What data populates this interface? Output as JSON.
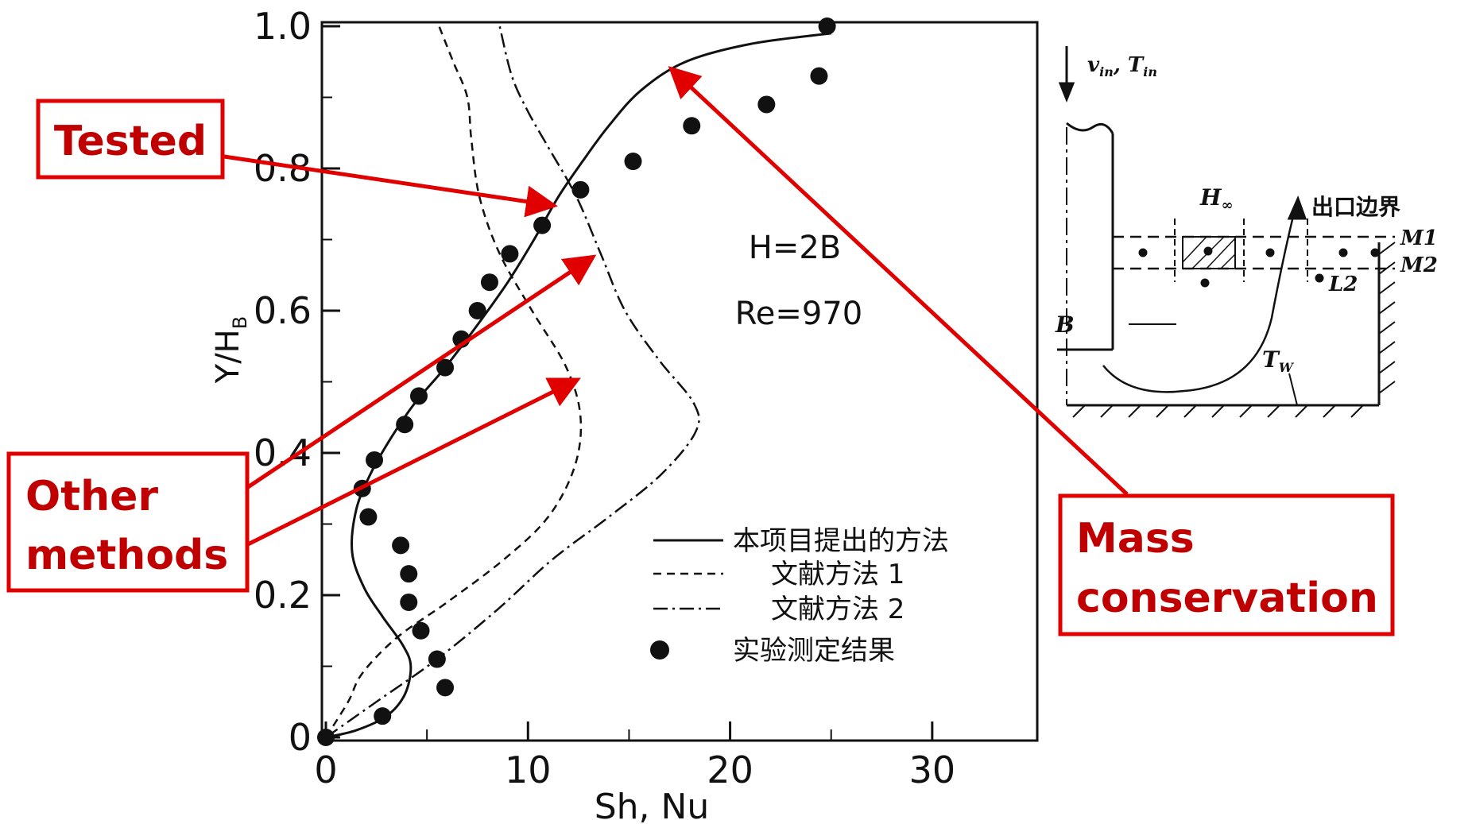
{
  "chart_data": {
    "type": "line",
    "xlabel": "Sh, Nu",
    "ylabel_main": "Y/H",
    "ylabel_sub": "B",
    "xlim": [
      0,
      35
    ],
    "ylim": [
      0,
      1.0
    ],
    "xticks": [
      "0",
      "10",
      "20",
      "30"
    ],
    "xtick_values": [
      0,
      10,
      20,
      30
    ],
    "yticks": [
      "0",
      "0.2",
      "0.4",
      "0.6",
      "0.8",
      "1.0"
    ],
    "ytick_values": [
      0,
      0.2,
      0.4,
      0.6,
      0.8,
      1.0
    ],
    "annotations": [
      "H=2B",
      "Re=970"
    ],
    "series": [
      {
        "name": "本项目提出的方法",
        "style": "solid",
        "points": [
          [
            0,
            0
          ],
          [
            1.5,
            0.01
          ],
          [
            3.0,
            0.03
          ],
          [
            3.9,
            0.06
          ],
          [
            4.2,
            0.1
          ],
          [
            3.8,
            0.13
          ],
          [
            2.8,
            0.17
          ],
          [
            1.9,
            0.21
          ],
          [
            1.3,
            0.26
          ],
          [
            1.5,
            0.32
          ],
          [
            2.2,
            0.37
          ],
          [
            3.2,
            0.42
          ],
          [
            4.4,
            0.47
          ],
          [
            5.9,
            0.52
          ],
          [
            7.5,
            0.58
          ],
          [
            9.0,
            0.64
          ],
          [
            10.3,
            0.7
          ],
          [
            11.5,
            0.76
          ],
          [
            12.7,
            0.81
          ],
          [
            14.0,
            0.86
          ],
          [
            15.6,
            0.91
          ],
          [
            17.8,
            0.95
          ],
          [
            21.0,
            0.975
          ],
          [
            25.0,
            0.99
          ]
        ]
      },
      {
        "name": "文献方法 1",
        "style": "dashed",
        "points": [
          [
            0,
            0
          ],
          [
            1.1,
            0.05
          ],
          [
            1.8,
            0.09
          ],
          [
            3.5,
            0.14
          ],
          [
            6.0,
            0.19
          ],
          [
            8.8,
            0.25
          ],
          [
            11.0,
            0.31
          ],
          [
            12.3,
            0.38
          ],
          [
            12.6,
            0.45
          ],
          [
            11.9,
            0.52
          ],
          [
            10.2,
            0.6
          ],
          [
            8.6,
            0.68
          ],
          [
            7.6,
            0.76
          ],
          [
            7.2,
            0.84
          ],
          [
            7.0,
            0.9
          ],
          [
            6.3,
            0.95
          ],
          [
            5.6,
            1.0
          ]
        ]
      },
      {
        "name": "文献方法 2",
        "style": "dashdot",
        "points": [
          [
            0,
            0
          ],
          [
            2.5,
            0.05
          ],
          [
            5.5,
            0.11
          ],
          [
            8.5,
            0.18
          ],
          [
            11.2,
            0.25
          ],
          [
            14.0,
            0.31
          ],
          [
            16.6,
            0.37
          ],
          [
            18.3,
            0.43
          ],
          [
            18.2,
            0.47
          ],
          [
            16.5,
            0.53
          ],
          [
            14.8,
            0.6
          ],
          [
            13.6,
            0.68
          ],
          [
            12.4,
            0.76
          ],
          [
            11.0,
            0.83
          ],
          [
            10.0,
            0.88
          ],
          [
            9.2,
            0.93
          ],
          [
            8.6,
            1.0
          ]
        ]
      },
      {
        "name": "实验测定结果",
        "style": "markers",
        "points": [
          [
            0,
            0
          ],
          [
            2.8,
            0.03
          ],
          [
            5.9,
            0.07
          ],
          [
            5.5,
            0.11
          ],
          [
            4.7,
            0.15
          ],
          [
            4.1,
            0.19
          ],
          [
            4.1,
            0.23
          ],
          [
            3.7,
            0.27
          ],
          [
            2.1,
            0.31
          ],
          [
            1.8,
            0.35
          ],
          [
            2.4,
            0.39
          ],
          [
            3.9,
            0.44
          ],
          [
            4.6,
            0.48
          ],
          [
            5.9,
            0.52
          ],
          [
            6.7,
            0.56
          ],
          [
            7.5,
            0.6
          ],
          [
            8.1,
            0.64
          ],
          [
            9.1,
            0.68
          ],
          [
            10.7,
            0.72
          ],
          [
            12.6,
            0.77
          ],
          [
            15.2,
            0.81
          ],
          [
            18.1,
            0.86
          ],
          [
            21.8,
            0.89
          ],
          [
            24.4,
            0.93
          ],
          [
            24.8,
            1.0
          ]
        ]
      }
    ]
  },
  "callouts": {
    "tested": "Tested",
    "other_line1": "Other",
    "other_line2": "methods",
    "mass_line1": "Mass",
    "mass_line2": "conservation"
  },
  "schematic": {
    "inlet_label": "v",
    "inlet_sub": "in",
    "inlet_label2": ", T",
    "inlet_sub2": "in",
    "h_label": "H",
    "h_sub": "∞",
    "exit_label": "出口边界",
    "m1": "M1",
    "m2": "M2",
    "l2": "L2",
    "b_label": "B",
    "tw_label": "T",
    "tw_sub": "W"
  },
  "colors": {
    "callout": "#e00000",
    "callout_text": "#c00000",
    "ink": "#111111"
  }
}
